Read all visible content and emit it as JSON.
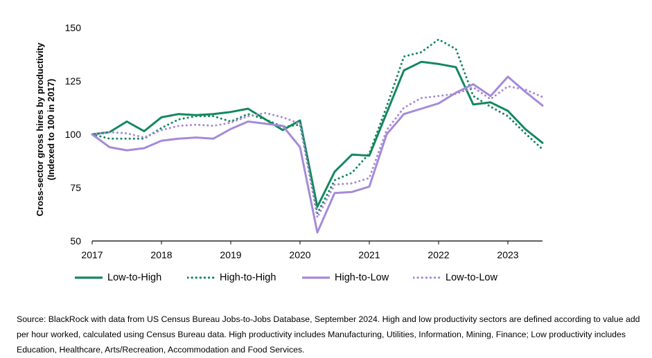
{
  "chart_data": {
    "type": "line",
    "title": "",
    "xlabel": "",
    "ylabel_lines": [
      "Cross-sector gross hires by productivity",
      "(Indexed to 100 in 2017)"
    ],
    "ylim": [
      50,
      150
    ],
    "xlim": [
      2017,
      2023.5
    ],
    "yticks": [
      50,
      75,
      100,
      125,
      150
    ],
    "xticks": [
      2017,
      2018,
      2019,
      2020,
      2021,
      2022,
      2023
    ],
    "xtick_labels": [
      "2017",
      "2018",
      "2019",
      "2020",
      "2021",
      "2022",
      "2023"
    ],
    "ytick_labels": [
      "50",
      "75",
      "100",
      "125",
      "150"
    ],
    "grid": false,
    "legend_position": "bottom",
    "x": [
      2017,
      2017.25,
      2017.5,
      2017.75,
      2018,
      2018.25,
      2018.5,
      2018.75,
      2019,
      2019.25,
      2019.5,
      2019.75,
      2020,
      2020.25,
      2020.5,
      2020.75,
      2021,
      2021.25,
      2021.5,
      2021.75,
      2022,
      2022.25,
      2022.5,
      2022.75,
      2023,
      2023.25,
      2023.5
    ],
    "series": [
      {
        "name": "Low-to-High",
        "color": "#14875f",
        "style": "solid",
        "values": [
          100,
          101,
          106,
          101.5,
          108,
          109.5,
          109,
          109.5,
          110.5,
          112,
          107,
          102,
          106.5,
          66,
          82.5,
          90.5,
          90,
          110,
          130,
          134,
          133,
          131.5,
          114,
          115,
          111,
          102.5,
          96
        ]
      },
      {
        "name": "High-to-High",
        "color": "#14875f",
        "style": "dotted",
        "values": [
          100,
          98,
          98,
          98,
          103,
          107,
          108.5,
          108.5,
          106,
          109.5,
          107,
          103.5,
          104.5,
          63,
          78.5,
          82,
          91,
          113,
          136.5,
          138.5,
          144.5,
          140,
          118,
          113,
          108.5,
          100.5,
          93
        ]
      },
      {
        "name": "High-to-Low",
        "color": "#a58ad8",
        "style": "solid",
        "values": [
          100,
          94,
          92.5,
          93.5,
          97,
          98,
          98.5,
          98,
          102.5,
          106,
          105,
          104,
          94,
          54,
          72.5,
          73,
          75.5,
          100,
          109.5,
          112,
          114.5,
          119.5,
          123.5,
          118,
          127,
          120,
          113.5
        ]
      },
      {
        "name": "Low-to-Low",
        "color": "#a58ad8",
        "style": "dotted",
        "values": [
          100,
          101,
          100.5,
          98.5,
          102,
          104,
          104.5,
          104,
          105.5,
          108.5,
          110,
          108,
          105,
          61,
          76.5,
          77,
          79.5,
          102,
          112.5,
          117,
          118,
          119,
          122,
          116.5,
          122.5,
          121,
          117.5
        ]
      }
    ]
  },
  "legend": {
    "items": [
      "Low-to-High",
      "High-to-High",
      "High-to-Low",
      "Low-to-Low"
    ]
  },
  "source_text": "Source: BlackRock with data from US Census Bureau Jobs-to-Jobs Database, September 2024. High and low productivity sectors are defined according to value add per hour worked, calculated using Census Bureau data. High productivity includes Manufacturing, Utilities, Information, Mining, Finance; Low productivity includes Education, Healthcare, Arts/Recreation, Accommodation and Food Services."
}
